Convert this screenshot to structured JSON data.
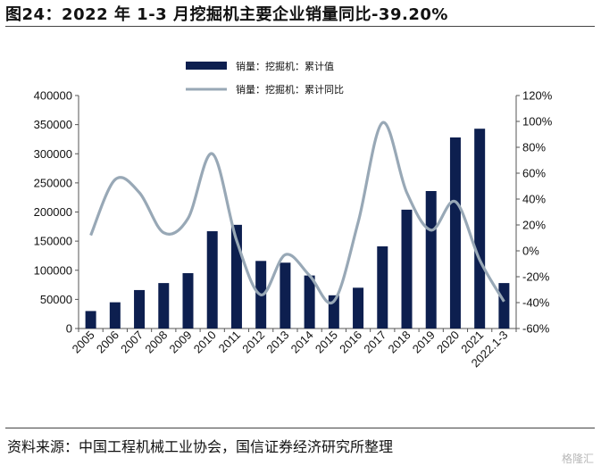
{
  "title": "图24：2022 年 1-3 月挖掘机主要企业销量同比-39.20%",
  "source": "资料来源：中国工程机械工业协会，国信证券经济研究所整理",
  "watermark": "格隆汇",
  "colors": {
    "bar": "#0d1f4f",
    "line": "#98a8b6"
  },
  "chart_data": {
    "type": "bar+line",
    "categories": [
      "2005",
      "2006",
      "2007",
      "2008",
      "2009",
      "2010",
      "2011",
      "2012",
      "2013",
      "2014",
      "2015",
      "2016",
      "2017",
      "2018",
      "2019",
      "2020",
      "2021",
      "2022.1-3"
    ],
    "series": [
      {
        "name": "销量：挖掘机：累计值",
        "type": "bar",
        "axis": "left",
        "values": [
          30000,
          45000,
          66000,
          78000,
          95000,
          167000,
          178000,
          116000,
          113000,
          91000,
          57000,
          70000,
          141000,
          204000,
          236000,
          328000,
          343000,
          78000
        ]
      },
      {
        "name": "销量：挖掘机：累计同比",
        "type": "line",
        "axis": "right",
        "unit": "%",
        "values": [
          12,
          55,
          45,
          14,
          25,
          75,
          8,
          -34,
          -3,
          -19,
          -39,
          22,
          99,
          45,
          16,
          38,
          -7,
          -39.2
        ]
      }
    ],
    "y_left": {
      "min": 0,
      "max": 400000,
      "step": 50000,
      "ticks": [
        "0",
        "50000",
        "100000",
        "150000",
        "200000",
        "250000",
        "300000",
        "350000",
        "400000"
      ]
    },
    "y_right": {
      "min": -60,
      "max": 120,
      "step": 20,
      "ticks": [
        "-60%",
        "-40%",
        "-20%",
        "0%",
        "20%",
        "40%",
        "60%",
        "80%",
        "100%",
        "120%"
      ]
    },
    "legend": {
      "position": "top-center"
    },
    "grid": false
  }
}
